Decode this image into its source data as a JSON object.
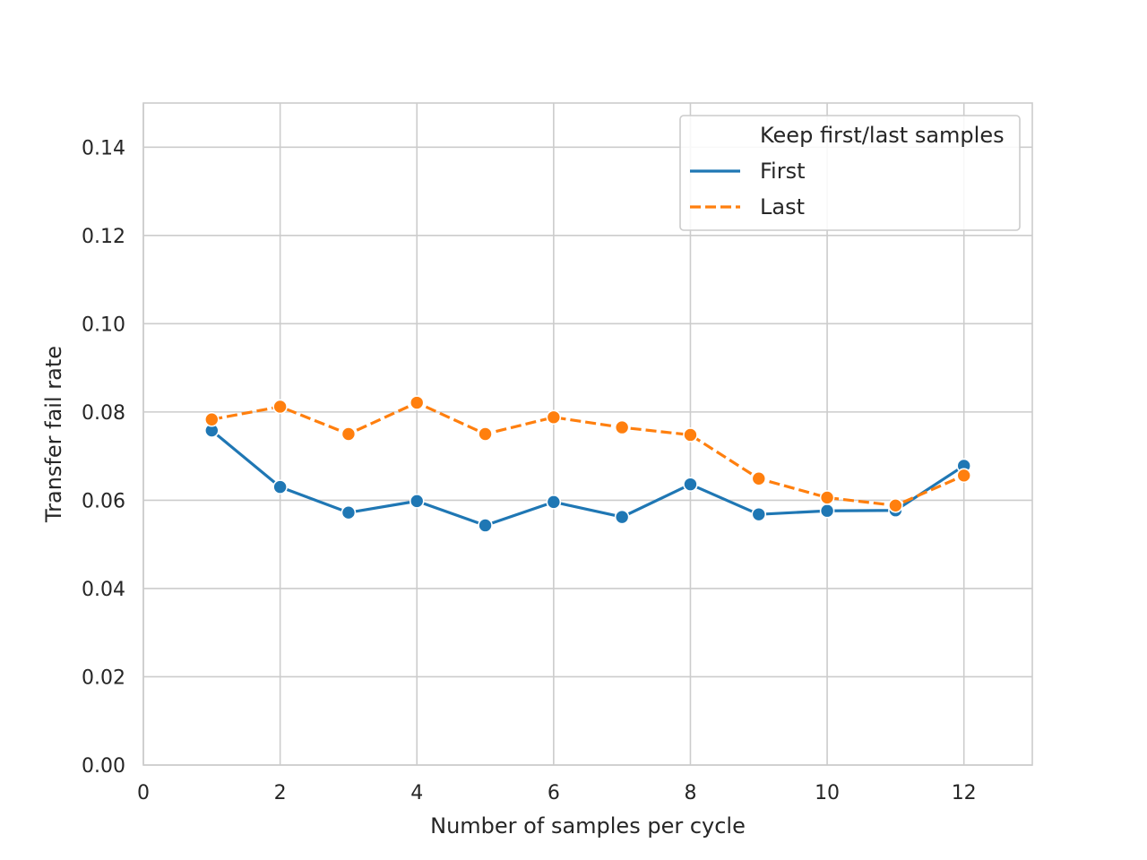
{
  "chart_data": {
    "type": "line",
    "title": "",
    "xlabel": "Number of samples per cycle",
    "ylabel": "Transfer fail rate",
    "xlim": [
      0,
      13
    ],
    "ylim": [
      0,
      0.15
    ],
    "xticks": [
      0,
      2,
      4,
      6,
      8,
      10,
      12
    ],
    "xtick_labels": [
      "0",
      "2",
      "4",
      "6",
      "8",
      "10",
      "12"
    ],
    "yticks": [
      0,
      0.02,
      0.04,
      0.06,
      0.08,
      0.1,
      0.12,
      0.14
    ],
    "ytick_labels": [
      "0.00",
      "0.02",
      "0.04",
      "0.06",
      "0.08",
      "0.10",
      "0.12",
      "0.14"
    ],
    "grid": true,
    "legend": {
      "title": "Keep first/last samples",
      "placement": "top-right"
    },
    "x": [
      1,
      2,
      3,
      4,
      5,
      6,
      7,
      8,
      9,
      10,
      11,
      12
    ],
    "series": [
      {
        "name": "First",
        "color": "#1f77b4",
        "linestyle": "solid",
        "values": [
          0.0758,
          0.063,
          0.0572,
          0.0598,
          0.0543,
          0.0596,
          0.0562,
          0.0636,
          0.0568,
          0.0576,
          0.0577,
          0.0678
        ]
      },
      {
        "name": "Last",
        "color": "#ff7f0e",
        "linestyle": "dashed",
        "values": [
          0.0783,
          0.0812,
          0.075,
          0.0821,
          0.075,
          0.0788,
          0.0765,
          0.0748,
          0.0649,
          0.0606,
          0.0588,
          0.0656
        ]
      }
    ]
  }
}
